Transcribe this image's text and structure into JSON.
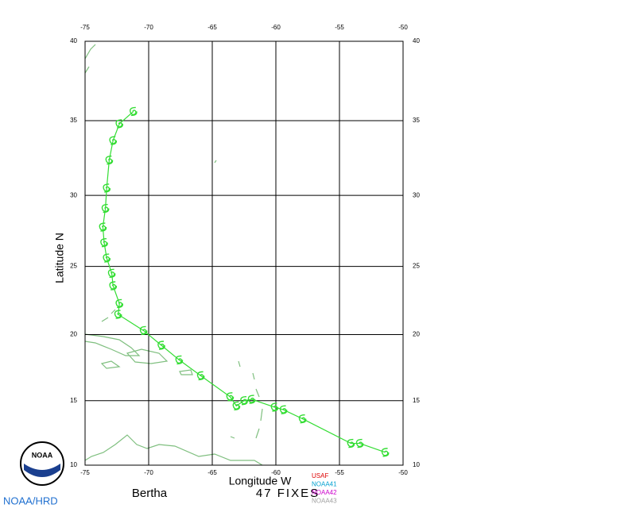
{
  "chart_data": {
    "type": "track",
    "storm_name": "Bertha",
    "fixes": "47 FIXES",
    "xlabel": "Longitude W",
    "ylabel": "Latitude N",
    "x": [
      -51.4,
      -53.4,
      -54.1,
      -57.9,
      -59.4,
      -60.1,
      -61.9,
      -62.5,
      -63.1,
      -63.6,
      -65.9,
      -67.6,
      -69.0,
      -70.4,
      -72.4,
      -72.3,
      -72.8,
      -72.9,
      -73.3,
      -73.5,
      -73.6,
      -73.4,
      -73.3,
      -73.1,
      -72.8,
      -72.3,
      -71.2
    ],
    "values": [
      11.0,
      11.7,
      11.7,
      13.6,
      14.3,
      14.5,
      15.1,
      15.0,
      14.6,
      15.3,
      16.9,
      18.1,
      19.2,
      20.3,
      21.5,
      22.3,
      23.6,
      24.5,
      25.6,
      26.7,
      27.8,
      29.1,
      30.5,
      32.4,
      33.7,
      34.8,
      35.6
    ],
    "color": "#33dd33",
    "xlim": [
      -75,
      -50
    ],
    "xticks": [
      -75,
      -70,
      -65,
      -60,
      -55,
      -50
    ],
    "ylim": [
      10,
      40
    ],
    "yticks": [
      10,
      15,
      20,
      25,
      30,
      35,
      40
    ],
    "yscale": "mercator",
    "grid": true,
    "legend": [
      {
        "name": "USAF",
        "color": "#dd0000"
      },
      {
        "name": "NOAA41",
        "color": "#00a0d0"
      },
      {
        "name": "NOAA42",
        "color": "#cc00cc"
      },
      {
        "name": "NOAA43",
        "color": "#a0a0a0"
      }
    ]
  },
  "footer": {
    "logo": "NOAA",
    "credit": "NOAA/HRD"
  }
}
